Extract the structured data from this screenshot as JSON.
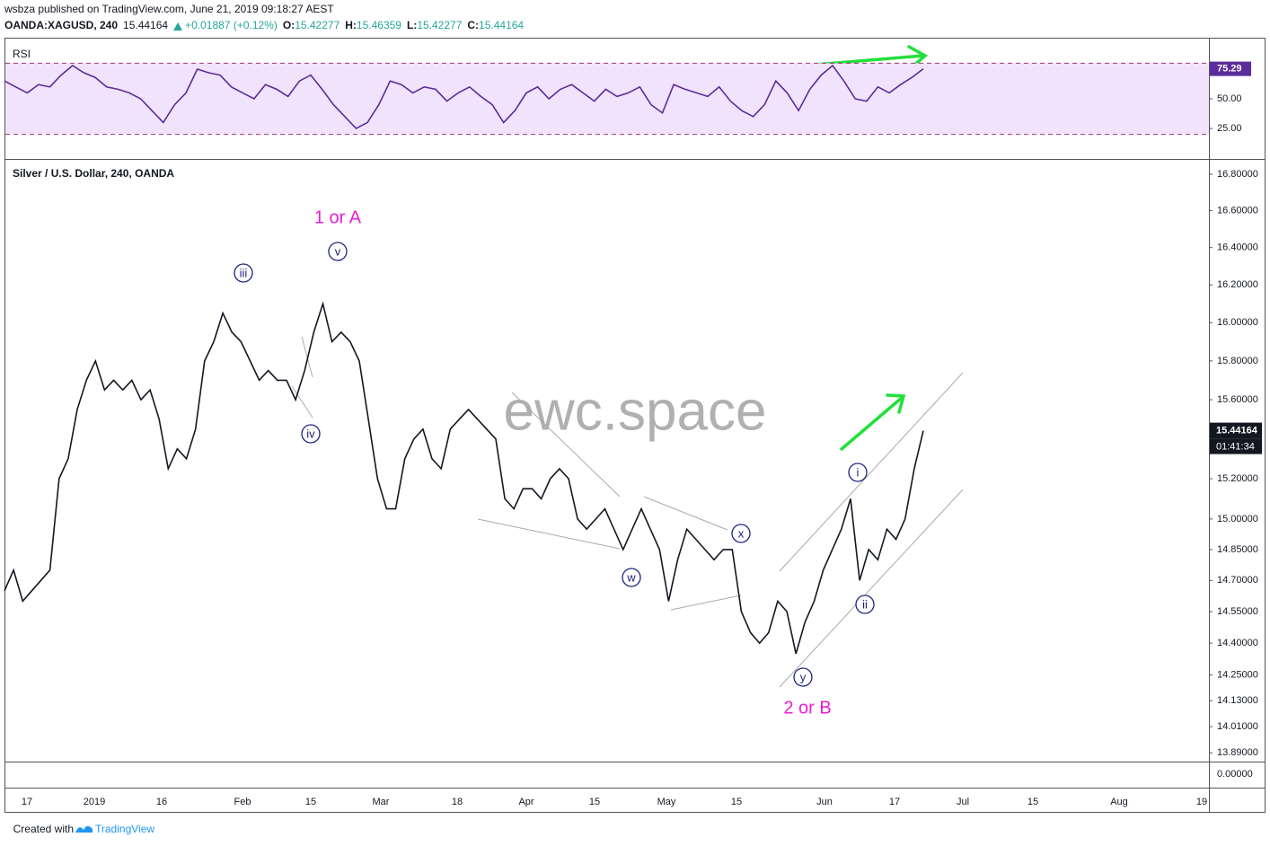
{
  "header": {
    "publisher": "wsbza published on TradingView.com, June 21, 2019 09:18:27 AEST",
    "symbol": "OANDA:XAGUSD, 240",
    "last": "15.44164",
    "change": "+0.01887 (+0.12%)",
    "ohlc": [
      {
        "label": "O:",
        "value": "15.42277"
      },
      {
        "label": "H:",
        "value": "15.46359"
      },
      {
        "label": "L:",
        "value": "15.42277"
      },
      {
        "label": "C:",
        "value": "15.44164"
      }
    ]
  },
  "chart_data": [
    {
      "type": "line",
      "title": "RSI",
      "color": "#5b2c9c",
      "values": [
        65,
        60,
        55,
        62,
        60,
        70,
        78,
        72,
        68,
        60,
        58,
        55,
        50,
        40,
        30,
        45,
        55,
        75,
        72,
        70,
        60,
        55,
        50,
        62,
        58,
        52,
        65,
        70,
        58,
        45,
        35,
        25,
        30,
        45,
        65,
        62,
        55,
        60,
        58,
        48,
        55,
        60,
        52,
        45,
        30,
        40,
        55,
        60,
        50,
        58,
        62,
        55,
        48,
        58,
        52,
        55,
        60,
        45,
        38,
        62,
        58,
        55,
        52,
        60,
        48,
        40,
        35,
        45,
        65,
        55,
        40,
        58,
        70,
        78,
        65,
        50,
        48,
        60,
        55,
        62,
        68,
        75.29
      ],
      "ylim": [
        0,
        100
      ],
      "yticks": [
        {
          "value": 25,
          "label": "25.00"
        },
        {
          "value": 50,
          "label": "50.00"
        }
      ],
      "bands": [
        20,
        80
      ]
    },
    {
      "type": "line",
      "title": "Silver / U.S. Dollar, 240, OANDA",
      "color": "#131722",
      "log_scale": true,
      "values": [
        14.65,
        14.75,
        14.6,
        14.65,
        14.7,
        14.75,
        15.2,
        15.3,
        15.55,
        15.7,
        15.8,
        15.65,
        15.7,
        15.65,
        15.7,
        15.6,
        15.65,
        15.5,
        15.25,
        15.35,
        15.3,
        15.45,
        15.8,
        15.9,
        16.05,
        15.95,
        15.9,
        15.8,
        15.7,
        15.75,
        15.7,
        15.7,
        15.6,
        15.75,
        15.95,
        16.1,
        15.9,
        15.95,
        15.9,
        15.8,
        15.5,
        15.2,
        15.05,
        15.05,
        15.3,
        15.4,
        15.45,
        15.3,
        15.25,
        15.45,
        15.5,
        15.55,
        15.5,
        15.45,
        15.4,
        15.1,
        15.05,
        15.15,
        15.15,
        15.1,
        15.2,
        15.25,
        15.2,
        15.0,
        14.95,
        15.0,
        15.05,
        14.95,
        14.85,
        14.95,
        15.05,
        14.95,
        14.85,
        14.6,
        14.8,
        14.95,
        14.9,
        14.85,
        14.8,
        14.85,
        14.85,
        14.55,
        14.45,
        14.4,
        14.45,
        14.6,
        14.55,
        14.35,
        14.5,
        14.6,
        14.75,
        14.85,
        14.95,
        15.1,
        14.7,
        14.85,
        14.8,
        14.95,
        14.9,
        15.0,
        15.25,
        15.44164
      ],
      "ylim": [
        13.85,
        16.88
      ],
      "yticks": [
        {
          "value": 16.8,
          "label": "16.80000"
        },
        {
          "value": 16.6,
          "label": "16.60000"
        },
        {
          "value": 16.4,
          "label": "16.40000"
        },
        {
          "value": 16.2,
          "label": "16.20000"
        },
        {
          "value": 16.0,
          "label": "16.00000"
        },
        {
          "value": 15.8,
          "label": "15.80000"
        },
        {
          "value": 15.6,
          "label": "15.60000"
        },
        {
          "value": 15.2,
          "label": "15.20000"
        },
        {
          "value": 15.0,
          "label": "15.00000"
        },
        {
          "value": 14.85,
          "label": "14.85000"
        },
        {
          "value": 14.7,
          "label": "14.70000"
        },
        {
          "value": 14.55,
          "label": "14.55000"
        },
        {
          "value": 14.4,
          "label": "14.40000"
        },
        {
          "value": 14.25,
          "label": "14.25000"
        },
        {
          "value": 14.13,
          "label": "14.13000"
        },
        {
          "value": 14.01,
          "label": "14.01000"
        },
        {
          "value": 13.89,
          "label": "13.89000"
        }
      ],
      "zero_label": "0.00000",
      "countdown": "01:41:34"
    }
  ],
  "time_axis": {
    "labels": [
      "17",
      "2019",
      "16",
      "Feb",
      "15",
      "Mar",
      "18",
      "Apr",
      "15",
      "May",
      "15",
      "Jun",
      "17",
      "Jul",
      "15",
      "Aug",
      "19"
    ]
  },
  "annotations": {
    "wave_labels": [
      "iii",
      "v",
      "iv",
      "w",
      "x",
      "y",
      "i",
      "ii"
    ],
    "degree_labels": [
      "1 or A",
      "2 or B"
    ],
    "watermark": "ewc.space"
  },
  "footer": {
    "prefix": "Created with",
    "brand": "TradingView"
  }
}
